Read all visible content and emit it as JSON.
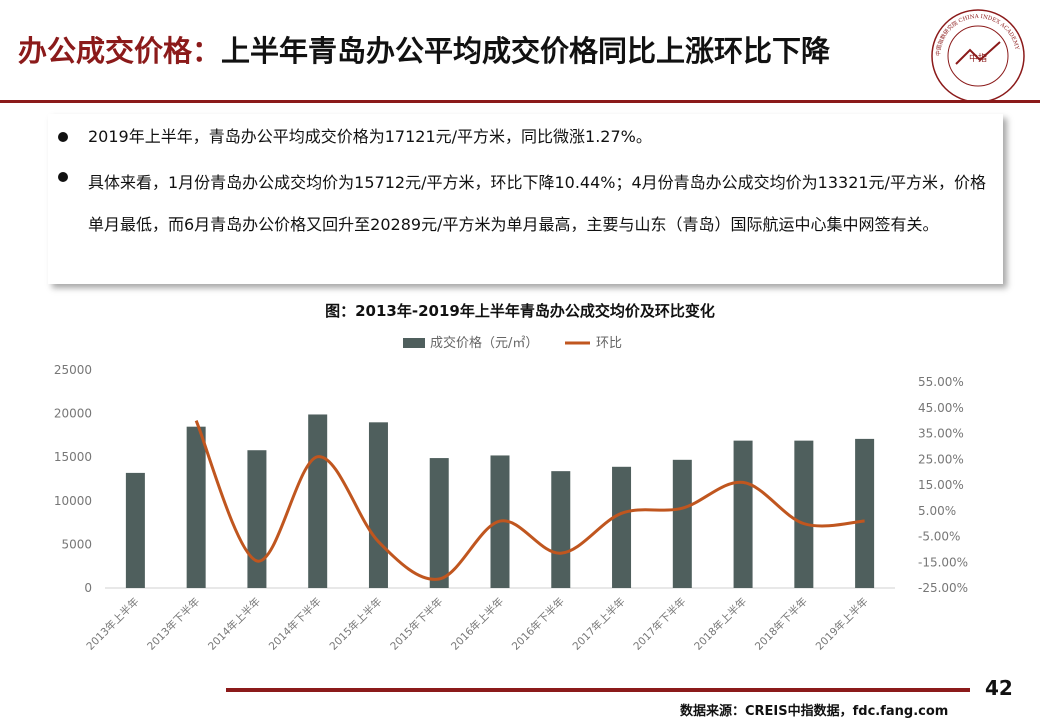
{
  "header": {
    "title_prefix": "办公成交价格：",
    "title_main": "上半年青岛办公平均成交价格同比上涨环比下降"
  },
  "logo": {
    "center_text": "中指",
    "ring_text": "中国指数研究院 CHINA INDEX ACADEMY"
  },
  "bullets": [
    "2019年上半年，青岛办公平均成交价格为17121元/平方米，同比微涨1.27%。",
    "具体来看，1月份青岛办公成交均价为15712元/平方米，环比下降10.44%；4月份青岛办公成交均价为13321元/平方米，价格单月最低，而6月青岛办公价格又回升至20289元/平方米为单月最高，主要与山东（青岛）国际航运中心集中网签有关。"
  ],
  "footer": {
    "page_number": "42",
    "source": "数据来源：CREIS中指数据，fdc.fang.com"
  },
  "colors": {
    "accent": "#8b1a1a",
    "bar": "#4f5f5d",
    "line": "#c0561f"
  },
  "chart_data": {
    "type": "bar+line",
    "title": "图：2013年-2019年上半年青岛办公成交均价及环比变化",
    "categories": [
      "2013年上半年",
      "2013年下半年",
      "2014年上半年",
      "2014年下半年",
      "2015年上半年",
      "2015年下半年",
      "2016年上半年",
      "2016年下半年",
      "2017年上半年",
      "2017年下半年",
      "2018年上半年",
      "2018年下半年",
      "2019年上半年"
    ],
    "series": [
      {
        "name": "成交价格（元/㎡）",
        "type": "bar",
        "axis": "left",
        "values": [
          13200,
          18500,
          15800,
          19900,
          19000,
          14900,
          15200,
          13400,
          13900,
          14700,
          16900,
          16900,
          17100
        ]
      },
      {
        "name": "环比",
        "type": "line",
        "axis": "right",
        "smooth": true,
        "values": [
          null,
          40.0,
          -14.5,
          26.0,
          -7.0,
          -21.5,
          1.0,
          -11.5,
          4.0,
          6.0,
          16.0,
          0.0,
          1.0
        ]
      }
    ],
    "left_axis": {
      "min": 0,
      "max": 25000,
      "ticks": [
        "0",
        "5000",
        "10000",
        "15000",
        "20000",
        "25000"
      ]
    },
    "right_axis": {
      "min": -25,
      "max": 55,
      "ticks": [
        "-25.00%",
        "-15.00%",
        "-5.00%",
        "5.00%",
        "15.00%",
        "25.00%",
        "35.00%",
        "45.00%",
        "55.00%"
      ]
    },
    "legend_position": "top-center",
    "grid": false
  }
}
